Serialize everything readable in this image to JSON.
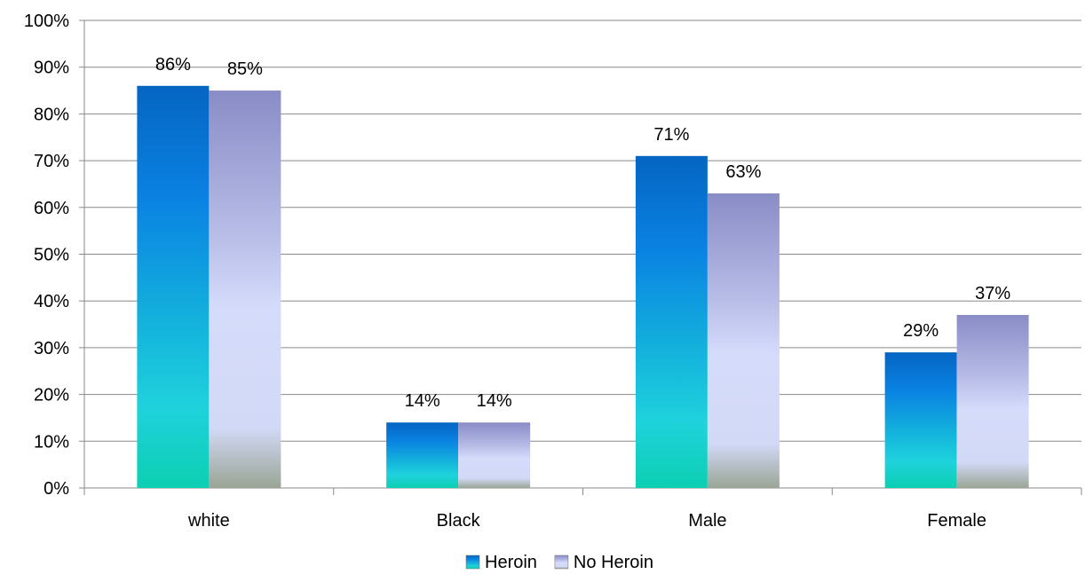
{
  "chart_data": {
    "type": "bar",
    "categories": [
      "white",
      "Black",
      "Male",
      "Female"
    ],
    "series": [
      {
        "name": "Heroin",
        "values": [
          86,
          14,
          71,
          29
        ],
        "color": "#0a78d8"
      },
      {
        "name": "No Heroin",
        "values": [
          85,
          14,
          63,
          37
        ],
        "color": "#a9b0e0"
      }
    ],
    "data_labels": [
      [
        "86%",
        "14%",
        "71%",
        "29%"
      ],
      [
        "85%",
        "14%",
        "63%",
        "37%"
      ]
    ],
    "yticks": [
      "0%",
      "10%",
      "20%",
      "30%",
      "40%",
      "50%",
      "60%",
      "70%",
      "80%",
      "90%",
      "100%"
    ],
    "ylim": [
      0,
      100
    ],
    "grid": true,
    "legend_position": "bottom",
    "title": "",
    "xlabel": "",
    "ylabel": ""
  }
}
